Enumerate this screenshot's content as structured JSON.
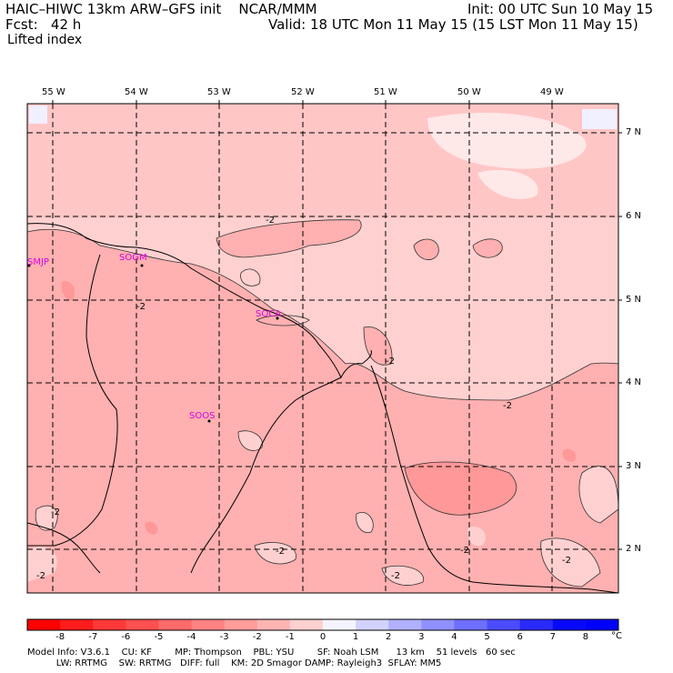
{
  "header": {
    "title": "HAIC–HIWC 13km ARW–GFS init    NCAR/MMM",
    "init": "Init: 00 UTC Sun 10 May 15",
    "fcst": "Fcst:   42 h",
    "valid": "Valid: 18 UTC Mon 11 May 15 (15 LST Mon 11 May 15)",
    "field": "Lifted index"
  },
  "map": {
    "lon_labels": [
      "55 W",
      "54 W",
      "53 W",
      "52 W",
      "51 W",
      "50 W",
      "49 W"
    ],
    "lat_labels": [
      "7 N",
      "6 N",
      "5 N",
      "4 N",
      "3 N",
      "2 N"
    ],
    "stations": [
      "SMJP",
      "SOGM",
      "SOCA",
      "SOOS"
    ],
    "contour_labels": [
      "-2",
      "-2",
      "-2",
      "-2",
      "-2",
      "-2",
      "-2",
      "-2",
      "-2",
      "-2"
    ]
  },
  "colorbar": {
    "ticks": [
      "-8",
      "-7",
      "-6",
      "-5",
      "-4",
      "-3",
      "-2",
      "-1",
      "0",
      "1",
      "2",
      "3",
      "4",
      "5",
      "6",
      "7",
      "8"
    ],
    "unit": "°C",
    "colors": [
      "#ff0000",
      "#ff1c1c",
      "#ff3838",
      "#ff5050",
      "#ff6a6a",
      "#ff8282",
      "#ff9c9c",
      "#ffb4b4",
      "#ffd0d0",
      "#f4f4ff",
      "#d2d2ff",
      "#b0b0ff",
      "#9090ff",
      "#6e6eff",
      "#4c4cff",
      "#2a2aff",
      "#0808ff",
      "#0000ff"
    ]
  },
  "model_info": {
    "line1": "Model Info: V3.6.1    CU: KF        MP: Thompson    PBL: YSU        SF: Noah LSM      13 km    51 levels   60 sec",
    "line2": "          LW: RRTMG    SW: RRTMG   DIFF: full    KM: 2D Smagor DAMP: Rayleigh3  SFLAY: MM5"
  }
}
